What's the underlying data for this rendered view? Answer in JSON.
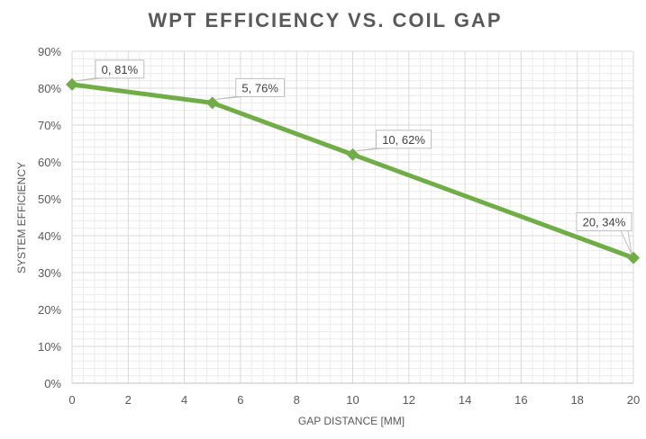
{
  "chart_data": {
    "type": "line",
    "title": "WPT EFFICIENCY VS. COIL GAP",
    "xlabel": "GAP DISTANCE [MM]",
    "ylabel": "SYSTEM EFFICIENCY",
    "xlim": [
      0,
      20
    ],
    "ylim": [
      0,
      0.9
    ],
    "x_ticks": [
      "0",
      "2",
      "4",
      "6",
      "8",
      "10",
      "12",
      "14",
      "16",
      "18",
      "20"
    ],
    "y_ticks": [
      "0%",
      "10%",
      "20%",
      "30%",
      "40%",
      "50%",
      "60%",
      "70%",
      "80%",
      "90%"
    ],
    "grid": true,
    "series": [
      {
        "x": [
          0,
          5,
          10,
          20
        ],
        "y": [
          0.81,
          0.76,
          0.62,
          0.34
        ],
        "labels": [
          "0, 81%",
          "5, 76%",
          "10, 62%",
          "20, 34%"
        ],
        "color": "#70ad47"
      }
    ]
  }
}
